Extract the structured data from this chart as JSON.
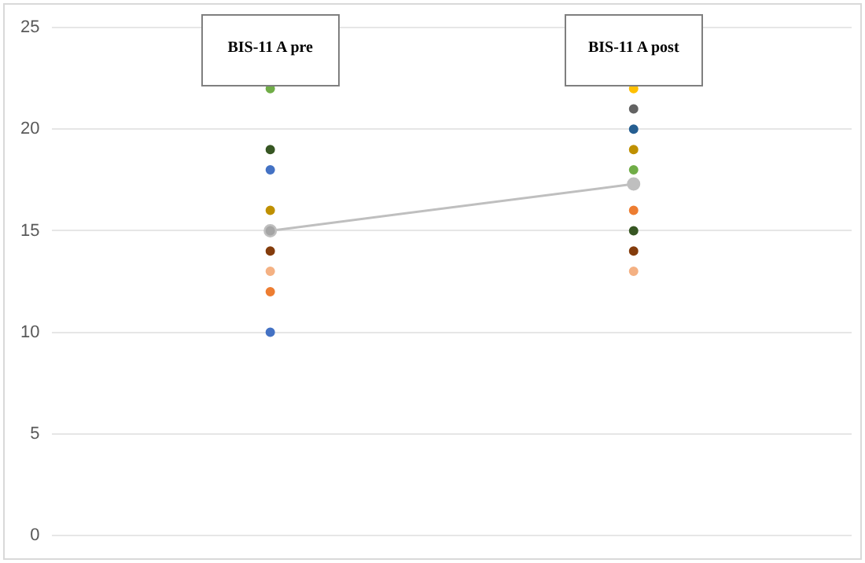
{
  "chart_data": {
    "type": "scatter",
    "categories": [
      "BIS-11 A pre",
      "BIS-11 A post"
    ],
    "series": [
      {
        "x": [
          "BIS-11 A pre",
          "BIS-11 A pre",
          "BIS-11 A pre",
          "BIS-11 A pre",
          "BIS-11 A pre",
          "BIS-11 A pre",
          "BIS-11 A pre",
          "BIS-11 A pre",
          "BIS-11 A pre"
        ],
        "values": [
          22,
          19,
          18,
          16,
          15,
          14,
          13,
          12,
          10
        ],
        "colors": [
          "#70ad47",
          "#375623",
          "#4472c4",
          "#bf9000",
          "#a5a5a5",
          "#843c0c",
          "#f4b183",
          "#ed7d31",
          "#4472c4"
        ]
      },
      {
        "x": [
          "BIS-11 A post",
          "BIS-11 A post",
          "BIS-11 A post",
          "BIS-11 A post",
          "BIS-11 A post",
          "BIS-11 A post",
          "BIS-11 A post",
          "BIS-11 A post",
          "BIS-11 A post"
        ],
        "values": [
          22,
          21,
          20,
          19,
          18,
          16,
          15,
          14,
          13
        ],
        "colors": [
          "#ffc000",
          "#636363",
          "#255e91",
          "#bf9000",
          "#70ad47",
          "#ed7d31",
          "#375623",
          "#843c0c",
          "#f4b183"
        ]
      },
      {
        "type": "line",
        "x": [
          "BIS-11 A pre",
          "BIS-11 A post"
        ],
        "values": [
          15,
          17.3
        ],
        "color": "#bfbfbf"
      }
    ],
    "ylim": [
      0,
      25
    ],
    "yticks": [
      0,
      5,
      10,
      15,
      20,
      25
    ],
    "grid": "y",
    "marker": "circle",
    "legend": false
  }
}
